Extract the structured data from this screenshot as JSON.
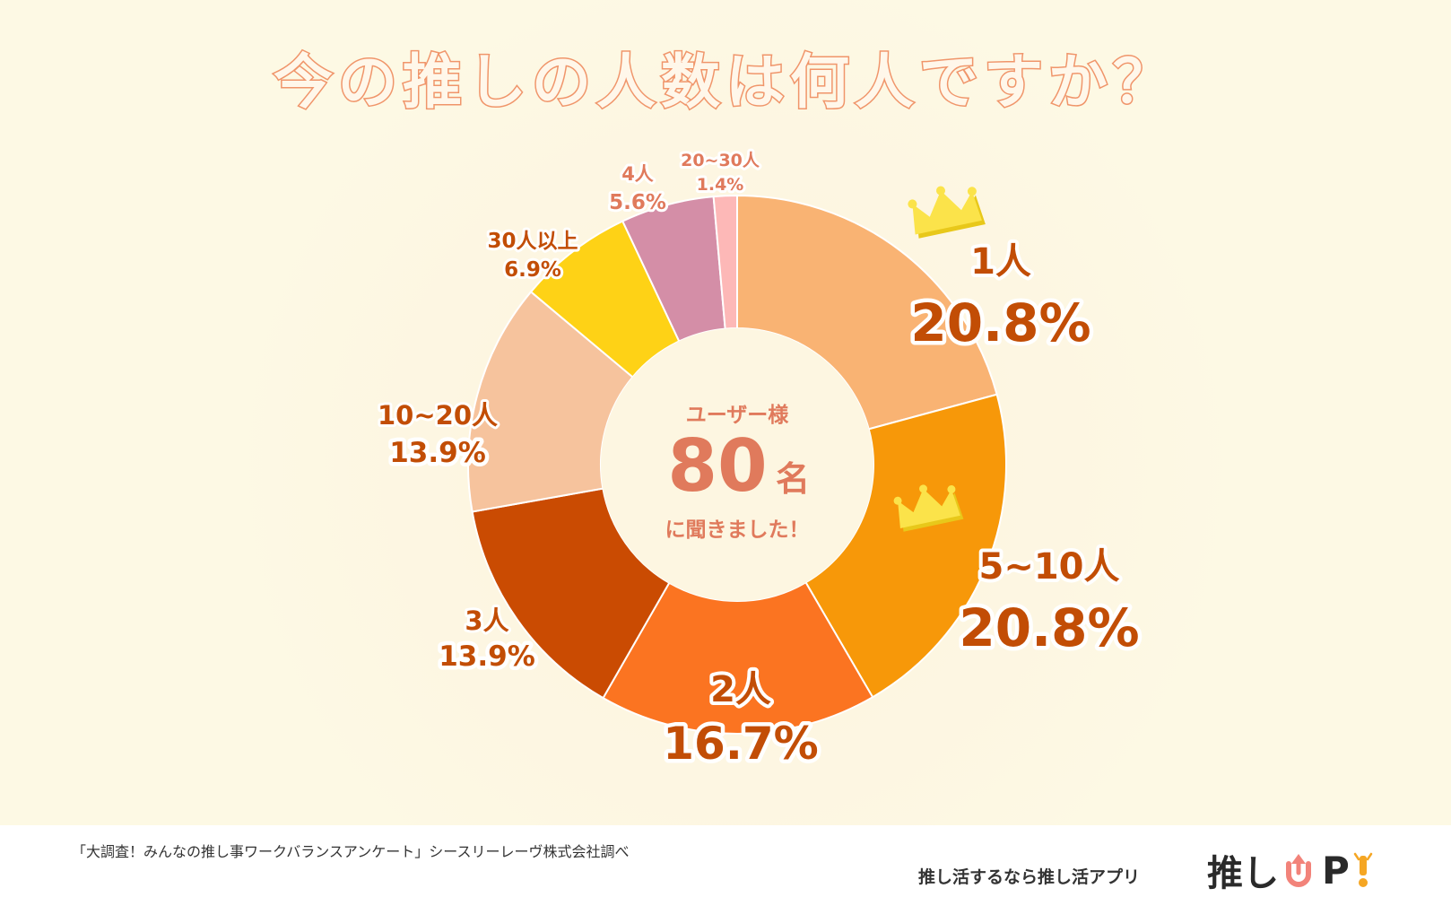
{
  "title": "今の推しの人数は何人ですか？",
  "center": {
    "top": "ユーザー様",
    "count": "80",
    "unit": "名",
    "bottom": "に聞きました！"
  },
  "chart_data": {
    "type": "pie",
    "title": "今の推しの人数は何人ですか？",
    "total_respondents": 80,
    "slices": [
      {
        "label": "1人",
        "value": 20.8,
        "display": "20.8%",
        "color": "#f9b373",
        "crown": true
      },
      {
        "label": "5~10人",
        "value": 20.8,
        "display": "20.8%",
        "color": "#f79809",
        "crown": true
      },
      {
        "label": "2人",
        "value": 16.7,
        "display": "16.7%",
        "color": "#fb7421",
        "crown": false
      },
      {
        "label": "3人",
        "value": 13.9,
        "display": "13.9%",
        "color": "#ca4b02",
        "crown": false
      },
      {
        "label": "10~20人",
        "value": 13.9,
        "display": "13.9%",
        "color": "#f6c39d",
        "crown": false
      },
      {
        "label": "30人以上",
        "value": 6.9,
        "display": "6.9%",
        "color": "#fed216",
        "crown": false
      },
      {
        "label": "4人",
        "value": 5.6,
        "display": "5.6%",
        "color": "#d48ea7",
        "crown": false
      },
      {
        "label": "20~30人",
        "value": 1.4,
        "display": "1.4%",
        "color": "#fdb8b7",
        "crown": false
      }
    ]
  },
  "footer": {
    "source": "「大調査！みんなの推し事ワークバランスアンケート」シースリーレーヴ株式会社調べ",
    "tagline": "推し活するなら推し活アプリ",
    "logo_text": "推し",
    "logo_up": "P",
    "logo_exclaim": "！"
  }
}
